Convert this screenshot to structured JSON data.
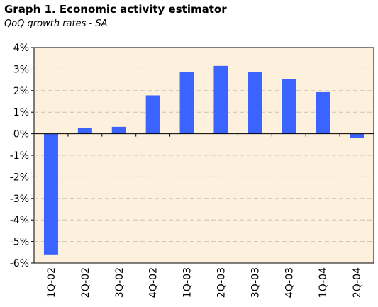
{
  "title": "Graph 1. Economic activity estimator",
  "subtitle": "QoQ growth rates - SA",
  "chart_data": {
    "type": "bar",
    "categories": [
      "1Q-02",
      "2Q-02",
      "3Q-02",
      "4Q-02",
      "1Q-03",
      "2Q-03",
      "3Q-03",
      "4Q-03",
      "1Q-04",
      "2Q-04"
    ],
    "values": [
      -5.6,
      0.27,
      0.32,
      1.78,
      2.85,
      3.15,
      2.88,
      2.52,
      1.93,
      -0.2
    ],
    "title": "Graph 1. Economic activity estimator",
    "subtitle": "QoQ growth rates - SA",
    "xlabel": "",
    "ylabel": "",
    "ylim": [
      -6,
      4
    ],
    "yticks": [
      4,
      3,
      2,
      1,
      0,
      -1,
      -2,
      -3,
      -4,
      -5,
      -6
    ],
    "ytick_labels": [
      "4%",
      "3%",
      "2%",
      "1%",
      "0%",
      "-1%",
      "-2%",
      "-3%",
      "-4%",
      "-5%",
      "-6%"
    ],
    "grid": true,
    "legend": "none",
    "colors": {
      "bar": "#3b63ff",
      "plot_background": "#fdf1dd",
      "grid": "#c9c3b8",
      "axis": "#000000"
    }
  }
}
